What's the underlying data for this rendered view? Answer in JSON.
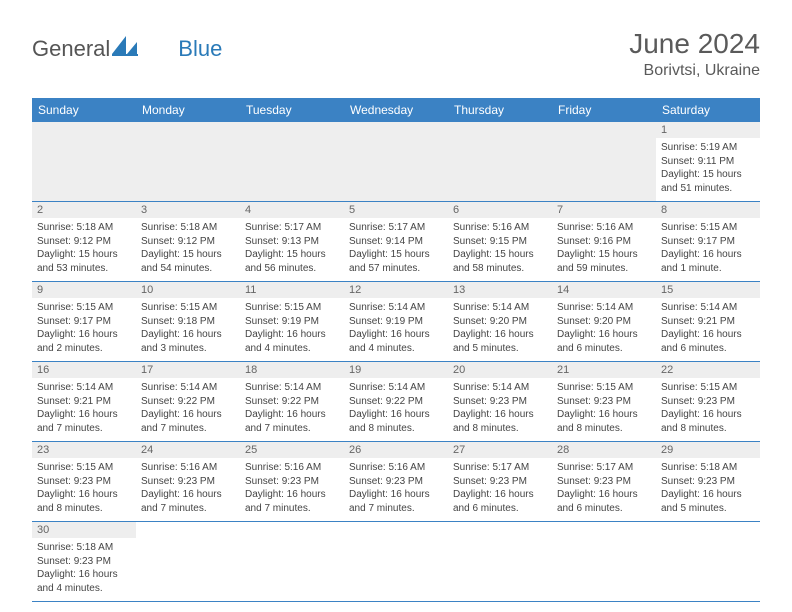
{
  "header": {
    "logo_general": "General",
    "logo_blue": "Blue",
    "month_title": "June 2024",
    "location": "Borivtsi, Ukraine"
  },
  "weekdays": [
    "Sunday",
    "Monday",
    "Tuesday",
    "Wednesday",
    "Thursday",
    "Friday",
    "Saturday"
  ],
  "colors": {
    "header_bg": "#3b82c4",
    "daynum_bg": "#eeeeee",
    "row_border": "#3b82c4"
  },
  "weeks": [
    [
      null,
      null,
      null,
      null,
      null,
      null,
      {
        "n": "1",
        "sr": "Sunrise: 5:19 AM",
        "ss": "Sunset: 9:11 PM",
        "dl1": "Daylight: 15 hours",
        "dl2": "and 51 minutes."
      }
    ],
    [
      {
        "n": "2",
        "sr": "Sunrise: 5:18 AM",
        "ss": "Sunset: 9:12 PM",
        "dl1": "Daylight: 15 hours",
        "dl2": "and 53 minutes."
      },
      {
        "n": "3",
        "sr": "Sunrise: 5:18 AM",
        "ss": "Sunset: 9:12 PM",
        "dl1": "Daylight: 15 hours",
        "dl2": "and 54 minutes."
      },
      {
        "n": "4",
        "sr": "Sunrise: 5:17 AM",
        "ss": "Sunset: 9:13 PM",
        "dl1": "Daylight: 15 hours",
        "dl2": "and 56 minutes."
      },
      {
        "n": "5",
        "sr": "Sunrise: 5:17 AM",
        "ss": "Sunset: 9:14 PM",
        "dl1": "Daylight: 15 hours",
        "dl2": "and 57 minutes."
      },
      {
        "n": "6",
        "sr": "Sunrise: 5:16 AM",
        "ss": "Sunset: 9:15 PM",
        "dl1": "Daylight: 15 hours",
        "dl2": "and 58 minutes."
      },
      {
        "n": "7",
        "sr": "Sunrise: 5:16 AM",
        "ss": "Sunset: 9:16 PM",
        "dl1": "Daylight: 15 hours",
        "dl2": "and 59 minutes."
      },
      {
        "n": "8",
        "sr": "Sunrise: 5:15 AM",
        "ss": "Sunset: 9:17 PM",
        "dl1": "Daylight: 16 hours",
        "dl2": "and 1 minute."
      }
    ],
    [
      {
        "n": "9",
        "sr": "Sunrise: 5:15 AM",
        "ss": "Sunset: 9:17 PM",
        "dl1": "Daylight: 16 hours",
        "dl2": "and 2 minutes."
      },
      {
        "n": "10",
        "sr": "Sunrise: 5:15 AM",
        "ss": "Sunset: 9:18 PM",
        "dl1": "Daylight: 16 hours",
        "dl2": "and 3 minutes."
      },
      {
        "n": "11",
        "sr": "Sunrise: 5:15 AM",
        "ss": "Sunset: 9:19 PM",
        "dl1": "Daylight: 16 hours",
        "dl2": "and 4 minutes."
      },
      {
        "n": "12",
        "sr": "Sunrise: 5:14 AM",
        "ss": "Sunset: 9:19 PM",
        "dl1": "Daylight: 16 hours",
        "dl2": "and 4 minutes."
      },
      {
        "n": "13",
        "sr": "Sunrise: 5:14 AM",
        "ss": "Sunset: 9:20 PM",
        "dl1": "Daylight: 16 hours",
        "dl2": "and 5 minutes."
      },
      {
        "n": "14",
        "sr": "Sunrise: 5:14 AM",
        "ss": "Sunset: 9:20 PM",
        "dl1": "Daylight: 16 hours",
        "dl2": "and 6 minutes."
      },
      {
        "n": "15",
        "sr": "Sunrise: 5:14 AM",
        "ss": "Sunset: 9:21 PM",
        "dl1": "Daylight: 16 hours",
        "dl2": "and 6 minutes."
      }
    ],
    [
      {
        "n": "16",
        "sr": "Sunrise: 5:14 AM",
        "ss": "Sunset: 9:21 PM",
        "dl1": "Daylight: 16 hours",
        "dl2": "and 7 minutes."
      },
      {
        "n": "17",
        "sr": "Sunrise: 5:14 AM",
        "ss": "Sunset: 9:22 PM",
        "dl1": "Daylight: 16 hours",
        "dl2": "and 7 minutes."
      },
      {
        "n": "18",
        "sr": "Sunrise: 5:14 AM",
        "ss": "Sunset: 9:22 PM",
        "dl1": "Daylight: 16 hours",
        "dl2": "and 7 minutes."
      },
      {
        "n": "19",
        "sr": "Sunrise: 5:14 AM",
        "ss": "Sunset: 9:22 PM",
        "dl1": "Daylight: 16 hours",
        "dl2": "and 8 minutes."
      },
      {
        "n": "20",
        "sr": "Sunrise: 5:14 AM",
        "ss": "Sunset: 9:23 PM",
        "dl1": "Daylight: 16 hours",
        "dl2": "and 8 minutes."
      },
      {
        "n": "21",
        "sr": "Sunrise: 5:15 AM",
        "ss": "Sunset: 9:23 PM",
        "dl1": "Daylight: 16 hours",
        "dl2": "and 8 minutes."
      },
      {
        "n": "22",
        "sr": "Sunrise: 5:15 AM",
        "ss": "Sunset: 9:23 PM",
        "dl1": "Daylight: 16 hours",
        "dl2": "and 8 minutes."
      }
    ],
    [
      {
        "n": "23",
        "sr": "Sunrise: 5:15 AM",
        "ss": "Sunset: 9:23 PM",
        "dl1": "Daylight: 16 hours",
        "dl2": "and 8 minutes."
      },
      {
        "n": "24",
        "sr": "Sunrise: 5:16 AM",
        "ss": "Sunset: 9:23 PM",
        "dl1": "Daylight: 16 hours",
        "dl2": "and 7 minutes."
      },
      {
        "n": "25",
        "sr": "Sunrise: 5:16 AM",
        "ss": "Sunset: 9:23 PM",
        "dl1": "Daylight: 16 hours",
        "dl2": "and 7 minutes."
      },
      {
        "n": "26",
        "sr": "Sunrise: 5:16 AM",
        "ss": "Sunset: 9:23 PM",
        "dl1": "Daylight: 16 hours",
        "dl2": "and 7 minutes."
      },
      {
        "n": "27",
        "sr": "Sunrise: 5:17 AM",
        "ss": "Sunset: 9:23 PM",
        "dl1": "Daylight: 16 hours",
        "dl2": "and 6 minutes."
      },
      {
        "n": "28",
        "sr": "Sunrise: 5:17 AM",
        "ss": "Sunset: 9:23 PM",
        "dl1": "Daylight: 16 hours",
        "dl2": "and 6 minutes."
      },
      {
        "n": "29",
        "sr": "Sunrise: 5:18 AM",
        "ss": "Sunset: 9:23 PM",
        "dl1": "Daylight: 16 hours",
        "dl2": "and 5 minutes."
      }
    ],
    [
      {
        "n": "30",
        "sr": "Sunrise: 5:18 AM",
        "ss": "Sunset: 9:23 PM",
        "dl1": "Daylight: 16 hours",
        "dl2": "and 4 minutes."
      },
      null,
      null,
      null,
      null,
      null,
      null
    ]
  ]
}
